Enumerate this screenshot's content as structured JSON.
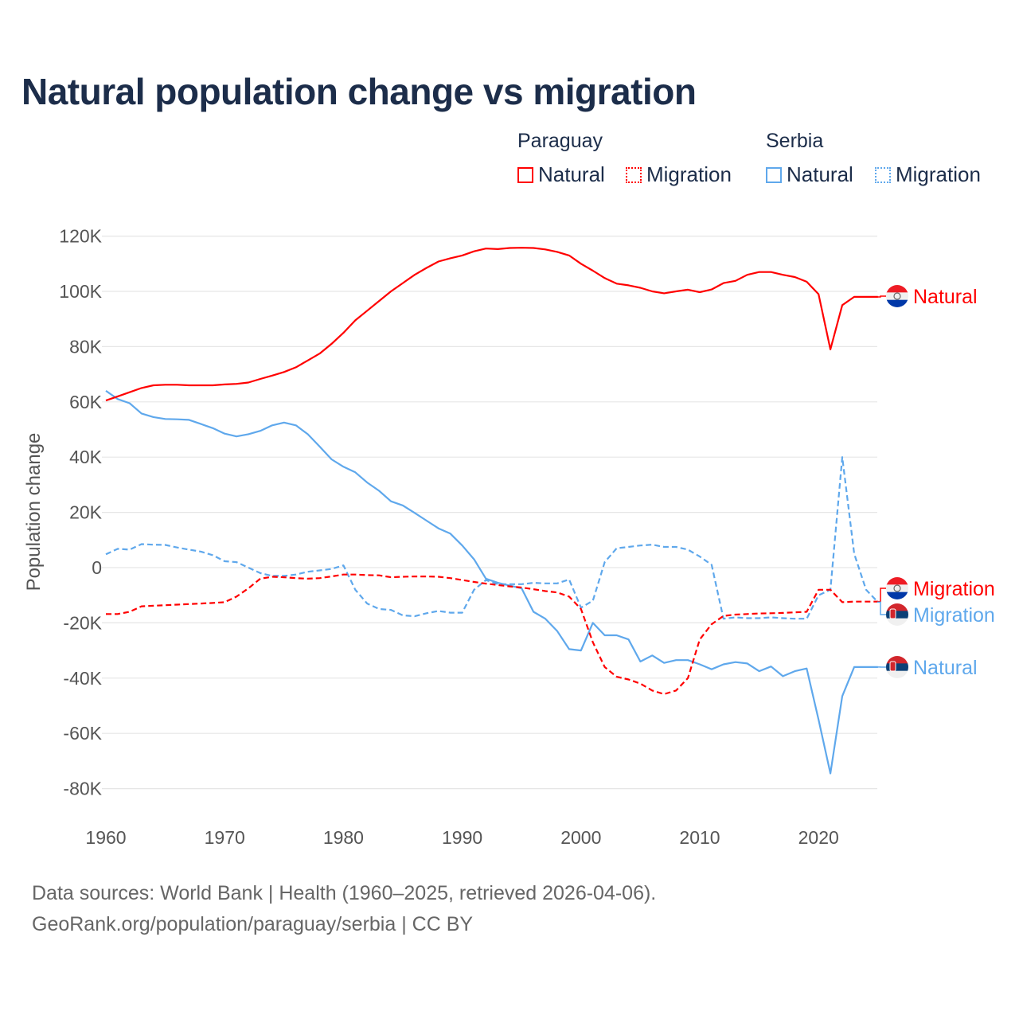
{
  "title": "Natural population change vs migration",
  "legend": {
    "groups": [
      {
        "country": "Paraguay",
        "items": [
          {
            "label": "Natural",
            "style": "solid"
          },
          {
            "label": "Migration",
            "style": "dotted"
          }
        ],
        "color": "#ff0000"
      },
      {
        "country": "Serbia",
        "items": [
          {
            "label": "Natural",
            "style": "solid"
          },
          {
            "label": "Migration",
            "style": "dotted"
          }
        ],
        "color": "#5fa8ec"
      }
    ]
  },
  "footer": {
    "line1": "Data sources: World Bank | Health (1960–2025, retrieved 2026-04-06).",
    "line2": "GeoRank.org/population/paraguay/serbia | CC BY"
  },
  "chart_data": {
    "type": "line",
    "title": "Natural population change vs migration",
    "xlabel": "",
    "ylabel": "Population change",
    "xlim": [
      1960,
      2025
    ],
    "ylim": [
      -80000,
      120000
    ],
    "grid": true,
    "legend_position": "top-right",
    "x_ticks": [
      "1960",
      "1970",
      "1980",
      "1990",
      "2000",
      "2010",
      "2020"
    ],
    "y_ticks": [
      {
        "value": 120000,
        "label": "120K"
      },
      {
        "value": 100000,
        "label": "100K"
      },
      {
        "value": 80000,
        "label": "80K"
      },
      {
        "value": 60000,
        "label": "60K"
      },
      {
        "value": 40000,
        "label": "40K"
      },
      {
        "value": 20000,
        "label": "20K"
      },
      {
        "value": 0,
        "label": "0"
      },
      {
        "value": -20000,
        "label": "-20K"
      },
      {
        "value": -40000,
        "label": "-40K"
      },
      {
        "value": -60000,
        "label": "-60K"
      },
      {
        "value": -80000,
        "label": "-80K"
      }
    ],
    "x_start": 1960,
    "series": [
      {
        "name": "Paraguay Natural",
        "end_label": "Natural",
        "country": "paraguay",
        "color": "#ff0000",
        "dash": false,
        "values_k": [
          60.5,
          62,
          63.5,
          65,
          66,
          66.2,
          66.2,
          66,
          66,
          66,
          66.3,
          66.5,
          67,
          68.3,
          69.5,
          70.8,
          72.5,
          75,
          77.5,
          81,
          85,
          89.5,
          93,
          96.5,
          100,
          103,
          106,
          108.5,
          110.8,
          112,
          113,
          114.5,
          115.5,
          115.3,
          115.7,
          115.8,
          115.7,
          115.2,
          114.3,
          113,
          110,
          107.5,
          104.8,
          102.8,
          102.2,
          101.3,
          100,
          99.3,
          100,
          100.6,
          99.7,
          100.7,
          103,
          103.8,
          106,
          107,
          107,
          106,
          105.2,
          103.5,
          99,
          79,
          95,
          98,
          98,
          98
        ]
      },
      {
        "name": "Paraguay Migration",
        "end_label": "Migration",
        "country": "paraguay",
        "color": "#ff0000",
        "dash": true,
        "values_k": [
          -16.8,
          -16.8,
          -16,
          -14,
          -13.8,
          -13.6,
          -13.4,
          -13.2,
          -13,
          -12.8,
          -12.5,
          -10.5,
          -7.5,
          -4,
          -3.3,
          -3.5,
          -3.8,
          -4,
          -3.8,
          -3.2,
          -2.5,
          -2.5,
          -2.7,
          -2.8,
          -3.5,
          -3.3,
          -3.2,
          -3.2,
          -3.3,
          -3.8,
          -4.5,
          -5.2,
          -5.8,
          -6.3,
          -6.8,
          -7.2,
          -7.8,
          -8.5,
          -9,
          -10.5,
          -15,
          -27,
          -36,
          -39.5,
          -40.5,
          -42,
          -44.5,
          -45.8,
          -44.5,
          -40,
          -26,
          -20.5,
          -17.5,
          -17,
          -16.8,
          -16.6,
          -16.5,
          -16.4,
          -16.2,
          -16,
          -8,
          -8,
          -12.5,
          -12.3,
          -12.3,
          -12.3
        ]
      },
      {
        "name": "Serbia Natural",
        "end_label": "Natural",
        "country": "serbia",
        "color": "#5fa8ec",
        "dash": false,
        "values_k": [
          64,
          61,
          59.5,
          55.8,
          54.5,
          53.8,
          53.7,
          53.5,
          52,
          50.5,
          48.5,
          47.5,
          48.3,
          49.5,
          51.5,
          52.5,
          51.5,
          48.3,
          43.8,
          39.2,
          36.5,
          34.5,
          30.8,
          27.8,
          24,
          22.5,
          19.8,
          17,
          14.2,
          12.3,
          8,
          3,
          -4,
          -5.5,
          -6.5,
          -7.5,
          -16,
          -18.5,
          -23,
          -29.5,
          -30,
          -20,
          -24.5,
          -24.5,
          -26,
          -34,
          -31.8,
          -34.5,
          -33.5,
          -33.5,
          -35,
          -36.8,
          -35,
          -34.2,
          -34.7,
          -37.5,
          -35.8,
          -39.3,
          -37.5,
          -36.5,
          -55,
          -74.5,
          -46.5,
          -36,
          -36,
          -36
        ]
      },
      {
        "name": "Serbia Migration",
        "end_label": "Migration",
        "country": "serbia",
        "color": "#5fa8ec",
        "dash": true,
        "values_k": [
          4.8,
          6.8,
          6.5,
          8.5,
          8.3,
          8.2,
          7.3,
          6.5,
          5.8,
          4.5,
          2.3,
          2,
          0,
          -2,
          -3,
          -3,
          -2.5,
          -1.5,
          -1,
          -0.5,
          0.8,
          -8,
          -13,
          -15,
          -15.3,
          -17.3,
          -17.6,
          -16.5,
          -15.7,
          -16.3,
          -16.3,
          -8,
          -4.5,
          -6,
          -6,
          -6,
          -5.5,
          -5.7,
          -5.7,
          -4.3,
          -14.5,
          -12,
          2,
          7,
          7.5,
          8,
          8.3,
          7.5,
          7.5,
          6.5,
          4,
          1,
          -18.5,
          -18,
          -18.3,
          -18.3,
          -18,
          -18.3,
          -18.5,
          -18.5,
          -10,
          -8,
          40,
          5,
          -8,
          -12.5
        ]
      }
    ]
  }
}
